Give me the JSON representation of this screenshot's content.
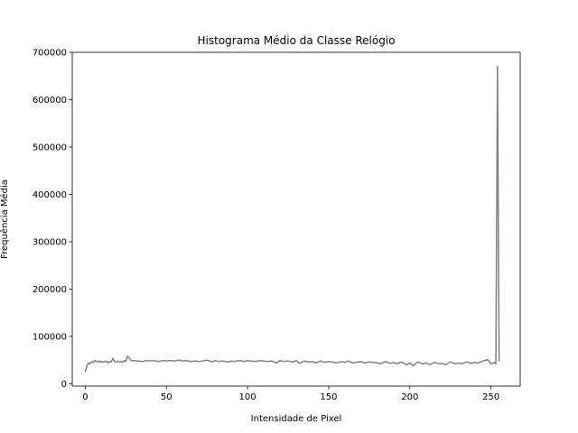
{
  "chart_data": {
    "type": "line",
    "title": "Histograma Médio da Classe Relógio",
    "xlabel": "Intensidade de Pixel",
    "ylabel": "Frequência Média",
    "xlim": [
      -8,
      268
    ],
    "ylim": [
      -5000,
      700000
    ],
    "xticks": [
      0,
      50,
      100,
      150,
      200,
      250
    ],
    "yticks": [
      0,
      100000,
      200000,
      300000,
      400000,
      500000,
      600000,
      700000
    ],
    "grid": false,
    "line_color": "#808080",
    "series": [
      {
        "x": [
          0,
          1,
          2,
          3,
          4,
          5,
          6,
          7,
          8,
          9,
          10,
          11,
          12,
          13,
          14,
          15,
          16,
          17,
          18,
          19,
          20,
          21,
          22,
          23,
          24,
          25,
          26,
          27,
          28,
          29,
          30,
          32,
          35,
          38,
          40,
          42,
          45,
          48,
          50,
          52,
          55,
          58,
          60,
          62,
          65,
          68,
          70,
          72,
          75,
          76,
          78,
          80,
          82,
          85,
          88,
          90,
          92,
          95,
          98,
          100,
          102,
          105,
          108,
          110,
          112,
          115,
          118,
          120,
          122,
          125,
          128,
          130,
          132,
          135,
          138,
          140,
          142,
          145,
          148,
          150,
          152,
          155,
          158,
          160,
          162,
          165,
          168,
          170,
          172,
          175,
          178,
          180,
          182,
          185,
          188,
          190,
          192,
          195,
          198,
          200,
          202,
          205,
          208,
          210,
          212,
          215,
          218,
          220,
          222,
          225,
          228,
          230,
          232,
          235,
          238,
          240,
          242,
          245,
          248,
          250,
          252,
          253,
          254,
          255
        ],
        "y": [
          25000,
          38000,
          44000,
          42000,
          47000,
          45000,
          49000,
          47000,
          46000,
          48000,
          45000,
          47000,
          46000,
          48000,
          44000,
          47000,
          46000,
          53000,
          47000,
          46000,
          48000,
          46000,
          47000,
          45000,
          49000,
          47000,
          58000,
          55000,
          50000,
          48000,
          49000,
          48000,
          47000,
          49000,
          48000,
          49000,
          47000,
          49000,
          48000,
          49000,
          48000,
          50000,
          48000,
          49000,
          47000,
          48000,
          47000,
          48000,
          50000,
          49000,
          46000,
          49000,
          47000,
          48000,
          46000,
          48000,
          47000,
          49000,
          47000,
          49000,
          48000,
          47000,
          49000,
          48000,
          47000,
          48000,
          44000,
          49000,
          47000,
          48000,
          46000,
          49000,
          43000,
          48000,
          46000,
          47000,
          44000,
          48000,
          45000,
          47000,
          46000,
          44000,
          47000,
          45000,
          48000,
          44000,
          46000,
          47000,
          44000,
          46000,
          45000,
          44000,
          42000,
          47000,
          43000,
          45000,
          42000,
          46000,
          40000,
          44000,
          38000,
          46000,
          42000,
          44000,
          40000,
          45000,
          42000,
          43000,
          40000,
          46000,
          42000,
          44000,
          42000,
          46000,
          43000,
          45000,
          44000,
          48000,
          51000,
          42000,
          45000,
          42000,
          670000,
          47000
        ]
      }
    ]
  }
}
